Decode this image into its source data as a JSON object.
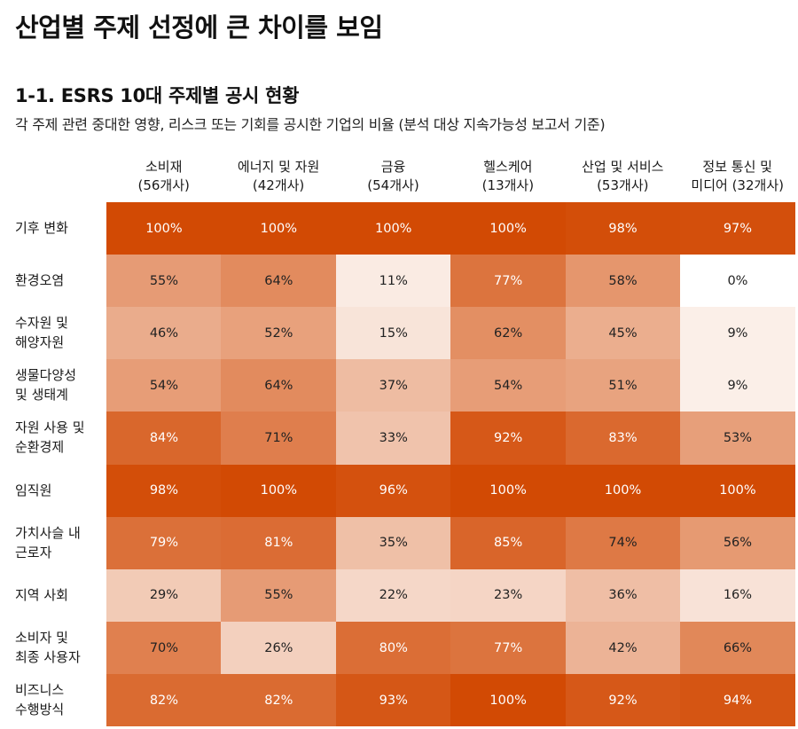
{
  "title": "산업별 주제 선정에 큰 차이를 보임",
  "section_title": "1-1. ESRS 10대 주제별 공시 현황",
  "subtitle": "각 주제 관련 중대한 영향, 리스크 또는 기회를 공시한 기업의 비율 (분석 대상 지속가능성 보고서 기준)",
  "chart_data": {
    "type": "heatmap",
    "title": "1-1. ESRS 10대 주제별 공시 현황",
    "subtitle": "각 주제 관련 중대한 영향, 리스크 또는 기회를 공시한 기업의 비율 (분석 대상 지속가능성 보고서 기준)",
    "unit": "%",
    "value_range": [
      0,
      100
    ],
    "color_low": "#ffffff",
    "color_high": "#d24a04",
    "columns": [
      {
        "name": "소비재",
        "count": "(56개사)"
      },
      {
        "name": "에너지 및 자원",
        "count": "(42개사)"
      },
      {
        "name": "금융",
        "count": "(54개사)"
      },
      {
        "name": "헬스케어",
        "count": "(13개사)"
      },
      {
        "name": "산업 및 서비스",
        "count": "(53개사)"
      },
      {
        "name": "정보 통신 및",
        "count": "미디어 (32개사)"
      }
    ],
    "rows": [
      {
        "label": [
          "기후 변화"
        ],
        "values": [
          100,
          100,
          100,
          100,
          98,
          97
        ]
      },
      {
        "label": [
          "환경오염"
        ],
        "values": [
          55,
          64,
          11,
          77,
          58,
          0
        ]
      },
      {
        "label": [
          "수자원 및",
          "해양자원"
        ],
        "values": [
          46,
          52,
          15,
          62,
          45,
          9
        ]
      },
      {
        "label": [
          "생물다양성",
          "및 생태계"
        ],
        "values": [
          54,
          64,
          37,
          54,
          51,
          9
        ]
      },
      {
        "label": [
          "자원 사용 및",
          "순환경제"
        ],
        "values": [
          84,
          71,
          33,
          92,
          83,
          53
        ]
      },
      {
        "label": [
          "임직원"
        ],
        "values": [
          98,
          100,
          96,
          100,
          100,
          100
        ]
      },
      {
        "label": [
          "가치사슬 내",
          "근로자"
        ],
        "values": [
          79,
          81,
          35,
          85,
          74,
          56
        ]
      },
      {
        "label": [
          "지역 사회"
        ],
        "values": [
          29,
          55,
          22,
          23,
          36,
          16
        ]
      },
      {
        "label": [
          "소비자 및",
          "최종 사용자"
        ],
        "values": [
          70,
          26,
          80,
          77,
          42,
          66
        ]
      },
      {
        "label": [
          "비즈니스",
          "수행방식"
        ],
        "values": [
          82,
          82,
          93,
          100,
          92,
          94
        ]
      }
    ]
  }
}
